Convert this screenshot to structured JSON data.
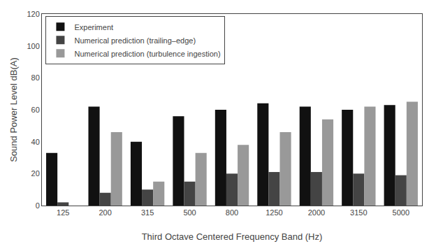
{
  "chart_data": {
    "type": "bar",
    "categories": [
      "125",
      "200",
      "315",
      "500",
      "800",
      "1250",
      "2000",
      "3150",
      "5000"
    ],
    "series": [
      {
        "name": "Experiment",
        "color": "#111111",
        "values": [
          33,
          62,
          40,
          56,
          60,
          64,
          62,
          60,
          63
        ]
      },
      {
        "name": "Numerical prediction (trailing–edge)",
        "color": "#444444",
        "values": [
          2,
          8,
          10,
          15,
          20,
          21,
          21,
          20,
          19
        ]
      },
      {
        "name": "Numerical prediction (turbulence ingestion)",
        "color": "#999999",
        "values": [
          0,
          46,
          15,
          33,
          38,
          46,
          54,
          62,
          65
        ]
      }
    ],
    "xlabel": "Third Octave Centered Frequency Band (Hz)",
    "ylabel": "Sound Power Level dB(A)",
    "ylim": [
      0,
      120
    ],
    "yticks": [
      0,
      20,
      40,
      60,
      80,
      100,
      120
    ],
    "grid": false,
    "legend": "upper left"
  }
}
